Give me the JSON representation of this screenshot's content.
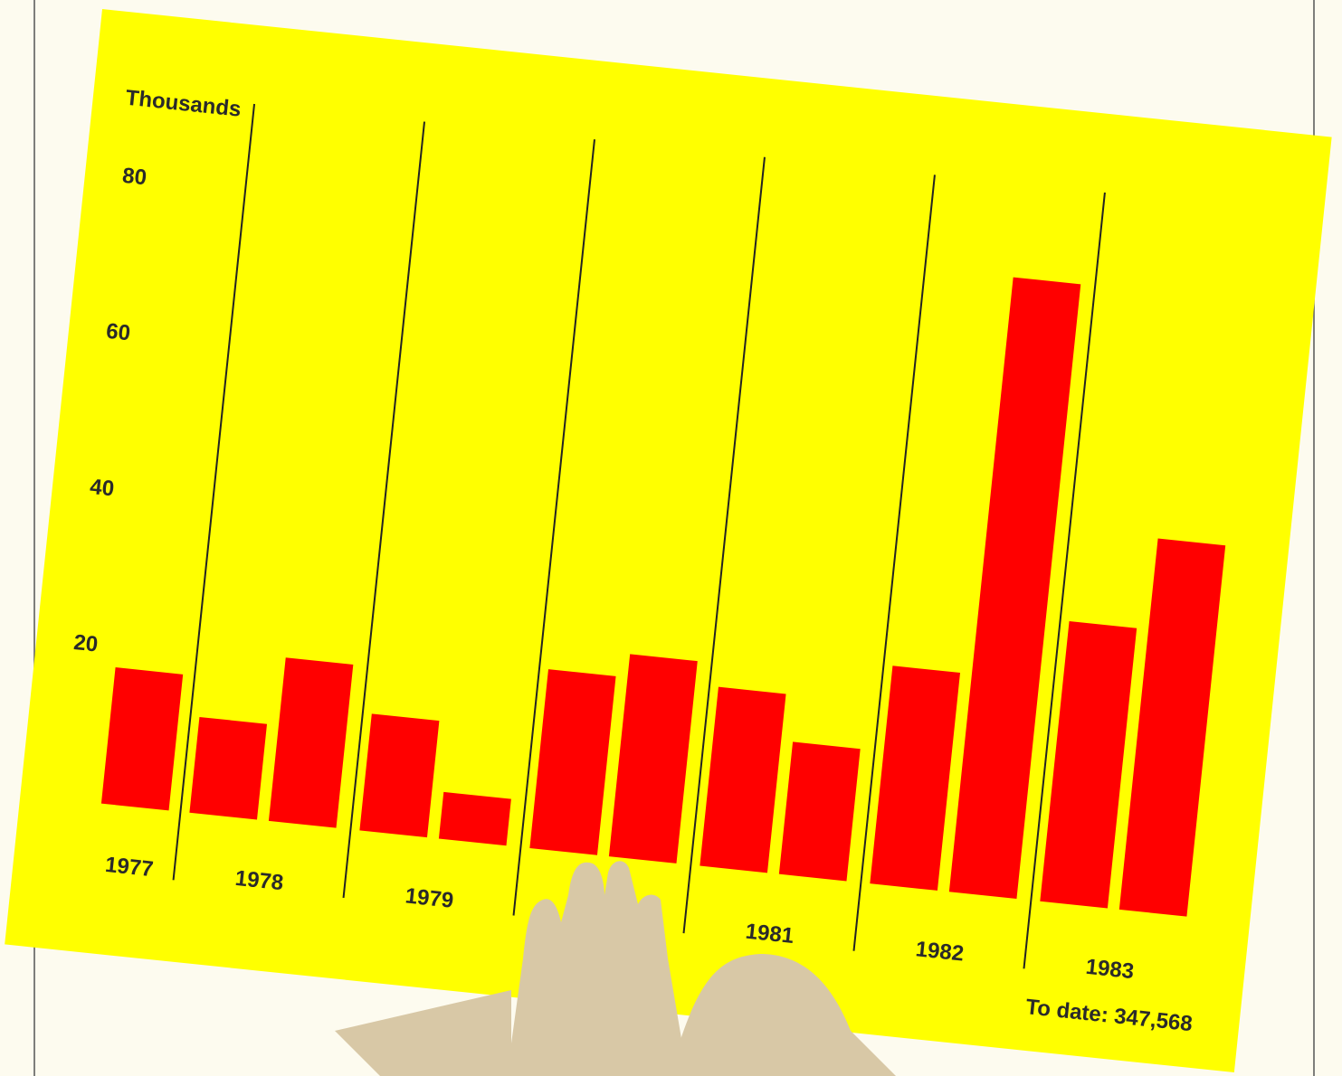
{
  "chart_data": {
    "type": "bar",
    "y_label": "Thousands",
    "categories": [
      "1977",
      "1978",
      "1979",
      null,
      "1981",
      "1982",
      "1983"
    ],
    "groups": [
      [
        17.5
      ],
      [
        12.3,
        21
      ],
      [
        15,
        6
      ],
      [
        23,
        26
      ],
      [
        23,
        17
      ],
      [
        28,
        79
      ],
      [
        36,
        47.7
      ]
    ],
    "ylim": [
      0,
      80
    ],
    "yticks": [
      20,
      40,
      60,
      80
    ],
    "color": "#ff0000",
    "background": "#ffff00",
    "total_label": "To date: 347,568"
  }
}
